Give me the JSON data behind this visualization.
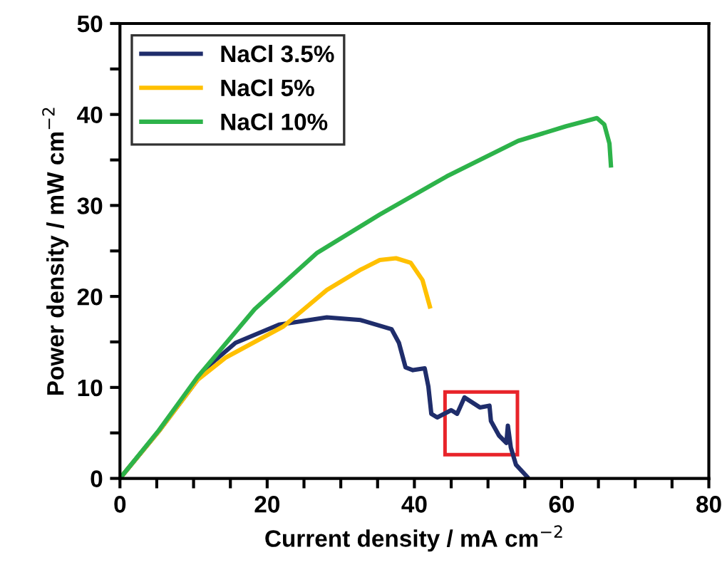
{
  "chart_data": {
    "type": "line",
    "xlabel": "Current density / mA cm$^{−2}$",
    "ylabel": "Power density / mW cm$^{−2}$",
    "xlim": [
      0,
      80
    ],
    "ylim": [
      0,
      50
    ],
    "xticks": [
      0,
      {
        "value": 5,
        "label": null
      },
      {
        "value": 10,
        "label": null
      },
      {
        "value": 15,
        "label": null
      },
      20,
      {
        "value": 25,
        "label": null
      },
      {
        "value": 30,
        "label": null
      },
      {
        "value": 35,
        "label": null
      },
      40,
      {
        "value": 45,
        "label": null
      },
      {
        "value": 50,
        "label": null
      },
      {
        "value": 55,
        "label": null
      },
      60,
      {
        "value": 65,
        "label": null
      },
      {
        "value": 70,
        "label": null
      },
      {
        "value": 75,
        "label": null
      },
      80
    ],
    "yticks": [
      0,
      {
        "value": 5,
        "label": null
      },
      10,
      {
        "value": 15,
        "label": null
      },
      20,
      {
        "value": 25,
        "label": null
      },
      30,
      {
        "value": 35,
        "label": null
      },
      40,
      {
        "value": 45,
        "label": null
      },
      50
    ],
    "grid": false,
    "legend": "top left",
    "marker": "none",
    "line_style": "solid",
    "series": [
      {
        "name": "NaCl 3.5%",
        "color": "#1f2d6b",
        "x": [
          0,
          5.3,
          11.8,
          15.7,
          21.6,
          28.1,
          32.7,
          36.9,
          37.9,
          38.8,
          39.8,
          41.4,
          41.9,
          42.3,
          43.1,
          45.0,
          45.8,
          46.8,
          48.9,
          50.2,
          50.4,
          51.5,
          52.5,
          52.7,
          53.1,
          53.8,
          55.3
        ],
        "values": [
          0,
          5.2,
          12.2,
          14.9,
          16.9,
          17.7,
          17.4,
          16.4,
          14.9,
          12.2,
          11.9,
          12.1,
          10.1,
          7.1,
          6.7,
          7.5,
          7.1,
          8.9,
          7.8,
          8.0,
          6.3,
          4.7,
          3.9,
          5.8,
          3.4,
          1.5,
          0.2
        ]
      },
      {
        "name": "NaCl 5%",
        "color": "#ffc000",
        "x": [
          0,
          5.3,
          10.5,
          14.4,
          22.2,
          28.1,
          32.6,
          35.3,
          37.5,
          39.5,
          41.1,
          42.1
        ],
        "values": [
          0,
          5.2,
          10.8,
          13.3,
          16.7,
          20.7,
          22.9,
          24.0,
          24.2,
          23.7,
          21.8,
          18.9
        ]
      },
      {
        "name": "NaCl 10%",
        "color": "#2db34a",
        "x": [
          0,
          5.3,
          10.5,
          18.3,
          26.8,
          35.3,
          44.4,
          54.1,
          60.6,
          64.8,
          65.8,
          66.5,
          66.7
        ],
        "values": [
          0,
          5.3,
          11.1,
          18.6,
          24.8,
          29.0,
          33.2,
          37.1,
          38.7,
          39.6,
          38.9,
          36.8,
          34.4
        ]
      }
    ]
  }
}
